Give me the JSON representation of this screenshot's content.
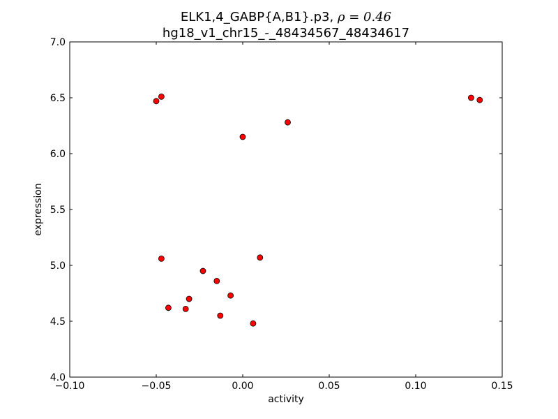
{
  "chart_data": {
    "type": "scatter",
    "title_line1_text": "ELK1,4_GABP{A,B1}.p3, ",
    "title_line1_math": "ρ = 0.46",
    "title_line2": "hg18_v1_chr15_-_48434567_48434617",
    "xlabel": "activity",
    "ylabel": "expression",
    "xlim": [
      -0.1,
      0.15
    ],
    "ylim": [
      4.0,
      7.0
    ],
    "x_ticks": [
      -0.1,
      -0.05,
      0.0,
      0.05,
      0.1,
      0.15
    ],
    "x_tick_labels": [
      "−0.10",
      "−0.05",
      "0.00",
      "0.05",
      "0.10",
      "0.15"
    ],
    "y_ticks": [
      4.0,
      4.5,
      5.0,
      5.5,
      6.0,
      6.5,
      7.0
    ],
    "y_tick_labels": [
      "4.0",
      "4.5",
      "5.0",
      "5.5",
      "6.0",
      "6.5",
      "7.0"
    ],
    "grid": false,
    "marker_color": "#ff0000",
    "marker_edge": "#000000",
    "points": [
      {
        "x": -0.05,
        "y": 6.47
      },
      {
        "x": -0.047,
        "y": 6.51
      },
      {
        "x": 0.132,
        "y": 6.5
      },
      {
        "x": 0.137,
        "y": 6.48
      },
      {
        "x": 0.0,
        "y": 6.15
      },
      {
        "x": 0.026,
        "y": 6.28
      },
      {
        "x": -0.047,
        "y": 5.06
      },
      {
        "x": 0.01,
        "y": 5.07
      },
      {
        "x": -0.023,
        "y": 4.95
      },
      {
        "x": -0.015,
        "y": 4.86
      },
      {
        "x": -0.007,
        "y": 4.73
      },
      {
        "x": -0.031,
        "y": 4.7
      },
      {
        "x": -0.043,
        "y": 4.62
      },
      {
        "x": -0.033,
        "y": 4.61
      },
      {
        "x": -0.013,
        "y": 4.55
      },
      {
        "x": 0.006,
        "y": 4.48
      }
    ]
  }
}
